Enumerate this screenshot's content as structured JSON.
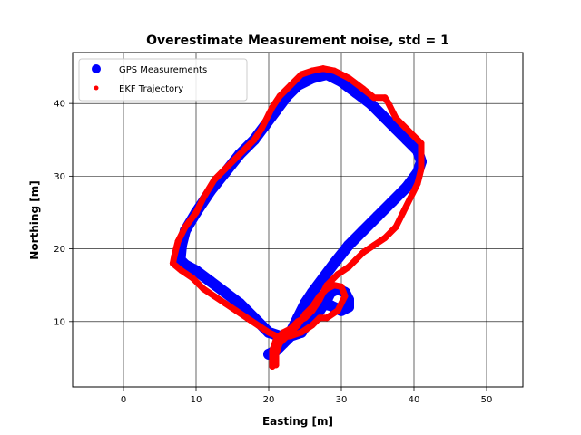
{
  "chart_data": {
    "type": "scatter",
    "title": "Overestimate Measurement noise, std = 1",
    "xlabel": "Easting [m]",
    "ylabel": "Northing [m]",
    "xlim": [
      -7,
      55
    ],
    "ylim": [
      1,
      47
    ],
    "xticks": [
      0,
      10,
      20,
      30,
      40,
      50
    ],
    "yticks": [
      10,
      20,
      30,
      40
    ],
    "grid": true,
    "legend_position": "upper-left",
    "series": [
      {
        "name": "GPS Measurements",
        "color": "#0000ff",
        "marker": "circle-large",
        "points": [
          [
            20.5,
            5.5
          ],
          [
            22,
            7
          ],
          [
            23,
            8.5
          ],
          [
            24,
            10.5
          ],
          [
            25,
            12.5
          ],
          [
            26,
            14
          ],
          [
            27.5,
            16
          ],
          [
            29,
            18
          ],
          [
            31,
            20.5
          ],
          [
            33,
            22.5
          ],
          [
            35,
            24.5
          ],
          [
            37,
            26.5
          ],
          [
            39,
            28.5
          ],
          [
            40.5,
            30.5
          ],
          [
            41,
            32
          ],
          [
            40.5,
            33.5
          ],
          [
            39,
            35
          ],
          [
            37.5,
            36.5
          ],
          [
            36,
            38
          ],
          [
            34,
            40
          ],
          [
            32,
            41.5
          ],
          [
            30,
            43
          ],
          [
            28,
            44
          ],
          [
            26,
            43.5
          ],
          [
            24,
            42.5
          ],
          [
            22.5,
            41
          ],
          [
            21,
            39
          ],
          [
            19.5,
            37
          ],
          [
            18,
            35
          ],
          [
            16,
            33
          ],
          [
            14,
            30.5
          ],
          [
            12,
            28
          ],
          [
            10,
            25
          ],
          [
            8.5,
            22.5
          ],
          [
            8,
            20.5
          ],
          [
            7.8,
            18.5
          ],
          [
            8.5,
            17.8
          ],
          [
            10,
            17
          ],
          [
            12,
            15.5
          ],
          [
            14,
            14
          ],
          [
            16,
            12.5
          ],
          [
            18,
            10.5
          ],
          [
            20,
            8.5
          ],
          [
            21.5,
            8
          ],
          [
            23,
            8
          ],
          [
            24.5,
            8.5
          ],
          [
            25.5,
            10
          ],
          [
            26,
            11.5
          ],
          [
            27,
            12.5
          ],
          [
            28.5,
            12.2
          ],
          [
            30,
            11.5
          ],
          [
            31,
            12
          ],
          [
            31,
            13
          ],
          [
            30.5,
            14
          ],
          [
            29.5,
            14.5
          ],
          [
            28.5,
            14
          ],
          [
            28,
            13
          ],
          [
            27,
            11.5
          ],
          [
            25.5,
            10.5
          ],
          [
            24,
            9
          ],
          [
            22.5,
            7.5
          ],
          [
            21,
            6
          ],
          [
            20,
            5.5
          ]
        ]
      },
      {
        "name": "EKF Trajectory",
        "color": "#ff0000",
        "marker": "circle-small",
        "points": [
          [
            20.5,
            3.8
          ],
          [
            20.5,
            4.5
          ],
          [
            20.5,
            6
          ],
          [
            21,
            7.5
          ],
          [
            22,
            8.5
          ],
          [
            23,
            9
          ],
          [
            24,
            10
          ],
          [
            25,
            10.5
          ],
          [
            26,
            11.5
          ],
          [
            27,
            13
          ],
          [
            28,
            15
          ],
          [
            29.5,
            16.5
          ],
          [
            31,
            17.5
          ],
          [
            32,
            18.5
          ],
          [
            33,
            19.5
          ],
          [
            34.5,
            20.5
          ],
          [
            36,
            21.5
          ],
          [
            37.5,
            23
          ],
          [
            38.5,
            25
          ],
          [
            39.5,
            27
          ],
          [
            40.5,
            29
          ],
          [
            41,
            31
          ],
          [
            41,
            33
          ],
          [
            41,
            34.5
          ],
          [
            40.5,
            35
          ],
          [
            39,
            36.5
          ],
          [
            37.5,
            38
          ],
          [
            36.5,
            40
          ],
          [
            36,
            40.8
          ],
          [
            34.5,
            40.8
          ],
          [
            33,
            42
          ],
          [
            31,
            43.5
          ],
          [
            29,
            44.5
          ],
          [
            27.5,
            44.8
          ],
          [
            26,
            44.5
          ],
          [
            24.5,
            44
          ],
          [
            23,
            42.5
          ],
          [
            21.5,
            41
          ],
          [
            20.5,
            39.5
          ],
          [
            20,
            38.5
          ],
          [
            19,
            36.5
          ],
          [
            18,
            35
          ],
          [
            17,
            34
          ],
          [
            15.5,
            32.5
          ],
          [
            14,
            31
          ],
          [
            12.5,
            29.5
          ],
          [
            11,
            27
          ],
          [
            10,
            25
          ],
          [
            8.5,
            23
          ],
          [
            7.5,
            21
          ],
          [
            7,
            19
          ],
          [
            6.8,
            18
          ],
          [
            8,
            17
          ],
          [
            9.5,
            16
          ],
          [
            11,
            14.5
          ],
          [
            12.5,
            13.5
          ],
          [
            14,
            12.5
          ],
          [
            15.5,
            11.5
          ],
          [
            17,
            10.5
          ],
          [
            18.5,
            9.5
          ],
          [
            20,
            8.5
          ],
          [
            21.5,
            7.8
          ],
          [
            23,
            8
          ],
          [
            24.5,
            8.5
          ],
          [
            26,
            9.5
          ],
          [
            27,
            10.5
          ],
          [
            28,
            10.5
          ],
          [
            29.5,
            11.5
          ],
          [
            30.5,
            13.5
          ],
          [
            30,
            14.8
          ],
          [
            29,
            15
          ],
          [
            28,
            14.5
          ],
          [
            27,
            13.5
          ],
          [
            26,
            12
          ],
          [
            25,
            11
          ],
          [
            24,
            9.5
          ],
          [
            22.5,
            8
          ],
          [
            21.5,
            7
          ],
          [
            21,
            5.5
          ],
          [
            21,
            4
          ]
        ]
      }
    ]
  }
}
